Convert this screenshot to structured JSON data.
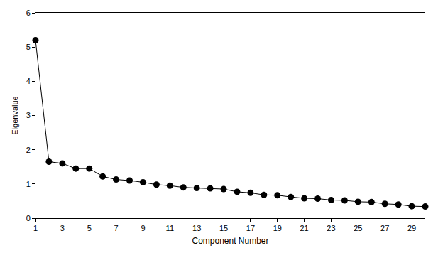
{
  "chart_data": {
    "type": "line",
    "x_label": "Component Number",
    "y_label": "Eigenvalue",
    "x": [
      1,
      2,
      3,
      4,
      5,
      6,
      7,
      8,
      9,
      10,
      11,
      12,
      13,
      14,
      15,
      16,
      17,
      18,
      19,
      20,
      21,
      22,
      23,
      24,
      25,
      26,
      27,
      28,
      29,
      30
    ],
    "values": [
      5.2,
      1.65,
      1.6,
      1.45,
      1.45,
      1.22,
      1.13,
      1.1,
      1.05,
      0.98,
      0.95,
      0.9,
      0.88,
      0.87,
      0.85,
      0.77,
      0.74,
      0.68,
      0.67,
      0.62,
      0.58,
      0.57,
      0.53,
      0.52,
      0.48,
      0.47,
      0.42,
      0.4,
      0.35,
      0.34
    ],
    "color": "#000000",
    "marker": "circle",
    "xlim": [
      1,
      30
    ],
    "xticks": [
      1,
      3,
      5,
      7,
      9,
      11,
      13,
      15,
      17,
      19,
      21,
      23,
      25,
      27,
      29
    ],
    "ylim": [
      0,
      6
    ],
    "yticks": [
      0,
      1,
      2,
      3,
      4,
      5,
      6
    ],
    "grid": false
  }
}
